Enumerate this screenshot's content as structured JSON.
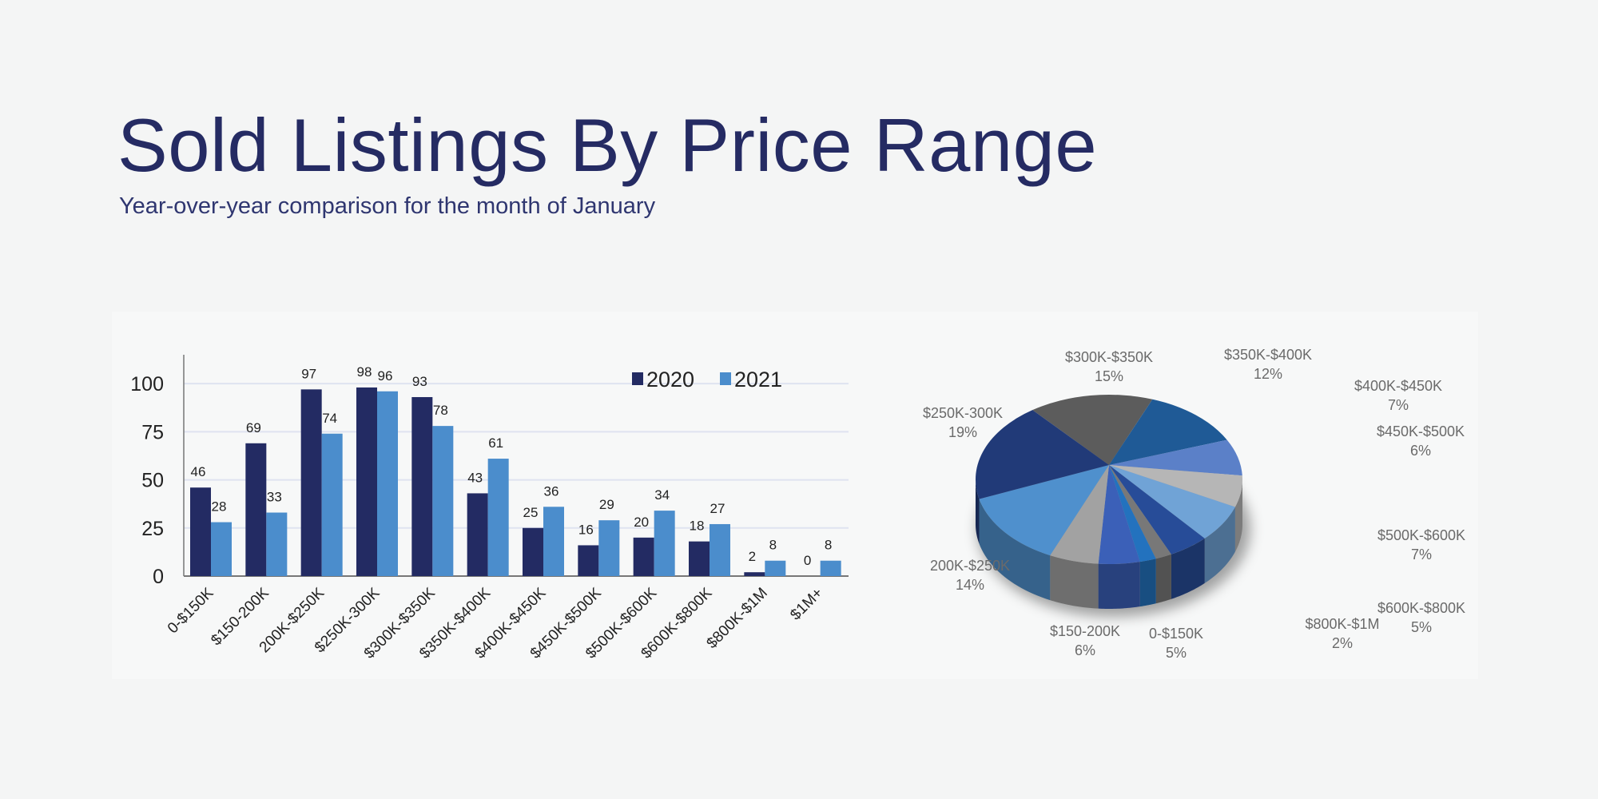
{
  "header": {
    "title": "Sold Listings By Price Range",
    "subtitle": "Year-over-year comparison for the month of January"
  },
  "chart_data": [
    {
      "type": "bar",
      "title": "",
      "xlabel": "",
      "ylabel": "",
      "ylim": [
        0,
        115
      ],
      "yticks": [
        0,
        25,
        50,
        75,
        100
      ],
      "grid": true,
      "legend": "top-right",
      "categories": [
        "0-$150K",
        "$150-200K",
        "200K-$250K",
        "$250K-300K",
        "$300K-$350K",
        "$350K-$400K",
        "$400K-$450K",
        "$450K-$500K",
        "$500K-$600K",
        "$600K-$800K",
        "$800K-$1M",
        "$1M+"
      ],
      "series": [
        {
          "name": "2020",
          "color": "#232b63",
          "values": [
            46,
            69,
            97,
            98,
            93,
            43,
            25,
            16,
            20,
            18,
            2,
            0
          ]
        },
        {
          "name": "2021",
          "color": "#4b8dcc",
          "values": [
            28,
            33,
            74,
            96,
            78,
            61,
            36,
            29,
            34,
            27,
            8,
            8
          ]
        }
      ]
    },
    {
      "type": "pie",
      "style": "3d",
      "slices": [
        {
          "label": "$300K-$350K",
          "pct": "15%",
          "value": 15,
          "color": "#5c5c5c"
        },
        {
          "label": "$350K-$400K",
          "pct": "12%",
          "value": 12,
          "color": "#1f5a96"
        },
        {
          "label": "$400K-$450K",
          "pct": "7%",
          "value": 7,
          "color": "#5b80c8"
        },
        {
          "label": "$450K-$500K",
          "pct": "6%",
          "value": 6,
          "color": "#b6b6b6"
        },
        {
          "label": "$500K-$600K",
          "pct": "7%",
          "value": 7,
          "color": "#70a3d6"
        },
        {
          "label": "$600K-$800K",
          "pct": "5%",
          "value": 5,
          "color": "#274c98"
        },
        {
          "label": "$800K-$1M",
          "pct": "2%",
          "value": 2,
          "color": "#787878"
        },
        {
          "label": "",
          "pct": "",
          "value": 2,
          "color": "#2372be"
        },
        {
          "label": "0-$150K",
          "pct": "5%",
          "value": 5,
          "color": "#3b60b8"
        },
        {
          "label": "$150-200K",
          "pct": "6%",
          "value": 6,
          "color": "#a2a2a2"
        },
        {
          "label": "200K-$250K",
          "pct": "14%",
          "value": 14,
          "color": "#4f90cd"
        },
        {
          "label": "$250K-300K",
          "pct": "19%",
          "value": 19,
          "color": "#213a78"
        }
      ]
    }
  ]
}
